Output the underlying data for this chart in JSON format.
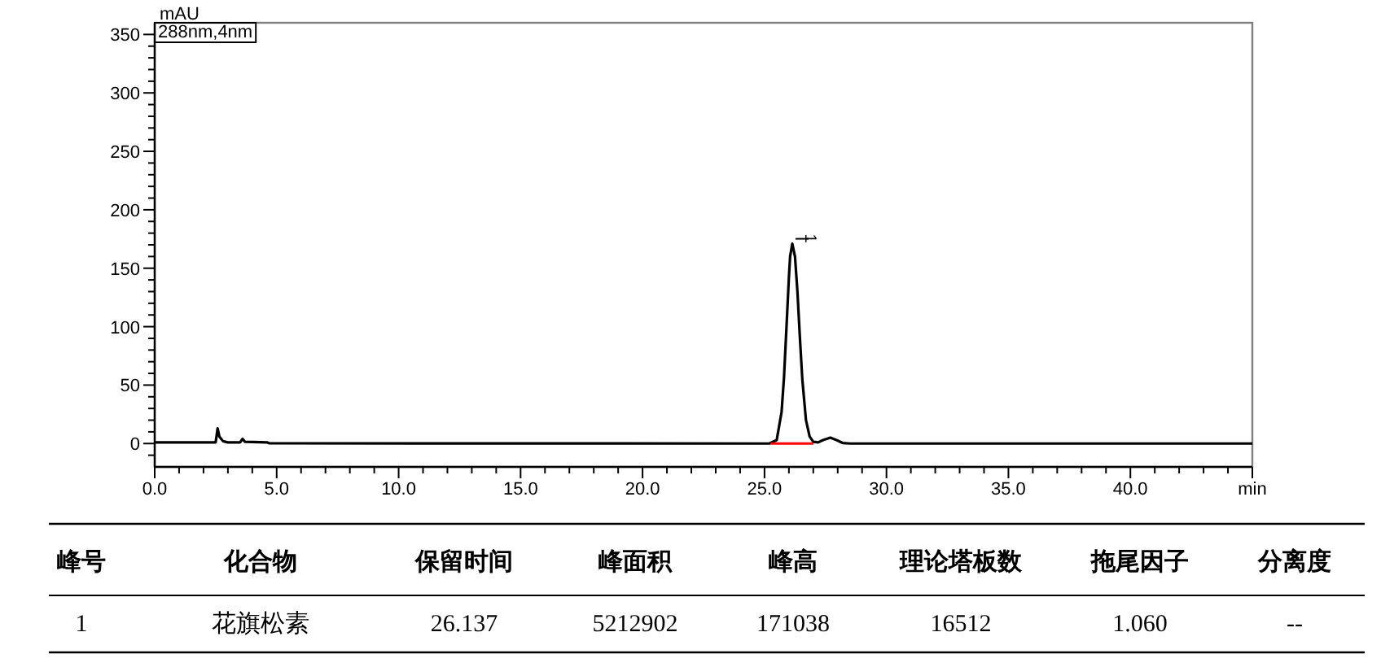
{
  "chart_data": [
    {
      "type": "line",
      "ylabel": "mAU",
      "xlim": [
        0,
        45
      ],
      "ylim": [
        -20,
        360
      ],
      "xticks": [
        {
          "value": 0,
          "label": "0.0"
        },
        {
          "value": 1,
          "label": null
        },
        {
          "value": 2,
          "label": null
        },
        {
          "value": 3,
          "label": null
        },
        {
          "value": 4,
          "label": null
        },
        {
          "value": 5,
          "label": "5.0"
        },
        {
          "value": 6,
          "label": null
        },
        {
          "value": 7,
          "label": null
        },
        {
          "value": 8,
          "label": null
        },
        {
          "value": 9,
          "label": null
        },
        {
          "value": 10,
          "label": "10.0"
        },
        {
          "value": 11,
          "label": null
        },
        {
          "value": 12,
          "label": null
        },
        {
          "value": 13,
          "label": null
        },
        {
          "value": 14,
          "label": null
        },
        {
          "value": 15,
          "label": "15.0"
        },
        {
          "value": 16,
          "label": null
        },
        {
          "value": 17,
          "label": null
        },
        {
          "value": 18,
          "label": null
        },
        {
          "value": 19,
          "label": null
        },
        {
          "value": 20,
          "label": "20.0"
        },
        {
          "value": 21,
          "label": null
        },
        {
          "value": 22,
          "label": null
        },
        {
          "value": 23,
          "label": null
        },
        {
          "value": 24,
          "label": null
        },
        {
          "value": 25,
          "label": "25.0"
        },
        {
          "value": 26,
          "label": null
        },
        {
          "value": 27,
          "label": null
        },
        {
          "value": 28,
          "label": null
        },
        {
          "value": 29,
          "label": null
        },
        {
          "value": 30,
          "label": "30.0"
        },
        {
          "value": 31,
          "label": null
        },
        {
          "value": 32,
          "label": null
        },
        {
          "value": 33,
          "label": null
        },
        {
          "value": 34,
          "label": null
        },
        {
          "value": 35,
          "label": "35.0"
        },
        {
          "value": 36,
          "label": null
        },
        {
          "value": 37,
          "label": null
        },
        {
          "value": 38,
          "label": null
        },
        {
          "value": 39,
          "label": null
        },
        {
          "value": 40,
          "label": "40.0"
        },
        {
          "value": 41,
          "label": null
        },
        {
          "value": 42,
          "label": null
        },
        {
          "value": 43,
          "label": null
        },
        {
          "value": 44,
          "label": null
        },
        {
          "value": 45,
          "label": "min"
        }
      ],
      "yticks": [
        {
          "value": -10,
          "label": null
        },
        0,
        {
          "value": 10,
          "label": null
        },
        {
          "value": 20,
          "label": null
        },
        {
          "value": 30,
          "label": null
        },
        {
          "value": 40,
          "label": null
        },
        50,
        {
          "value": 60,
          "label": null
        },
        {
          "value": 70,
          "label": null
        },
        {
          "value": 80,
          "label": null
        },
        {
          "value": 90,
          "label": null
        },
        100,
        {
          "value": 110,
          "label": null
        },
        {
          "value": 120,
          "label": null
        },
        {
          "value": 130,
          "label": null
        },
        {
          "value": 140,
          "label": null
        },
        150,
        {
          "value": 160,
          "label": null
        },
        {
          "value": 170,
          "label": null
        },
        {
          "value": 180,
          "label": null
        },
        {
          "value": 190,
          "label": null
        },
        200,
        {
          "value": 210,
          "label": null
        },
        {
          "value": 220,
          "label": null
        },
        {
          "value": 230,
          "label": null
        },
        {
          "value": 240,
          "label": null
        },
        250,
        {
          "value": 260,
          "label": null
        },
        {
          "value": 270,
          "label": null
        },
        {
          "value": 280,
          "label": null
        },
        {
          "value": 290,
          "label": null
        },
        300,
        {
          "value": 310,
          "label": null
        },
        {
          "value": 320,
          "label": null
        },
        {
          "value": 330,
          "label": null
        },
        {
          "value": 340,
          "label": null
        },
        350
      ],
      "series": [
        {
          "color": "#000000",
          "x": [
            0,
            2.5,
            2.58,
            2.65,
            2.8,
            3.0,
            3.5,
            3.6,
            3.7,
            4.6,
            4.7,
            25.0,
            25.2,
            25.5,
            25.7,
            25.8,
            25.9,
            26.0,
            26.05,
            26.14,
            26.25,
            26.35,
            26.45,
            26.55,
            26.7,
            26.85,
            27.0,
            27.2,
            27.4,
            27.7,
            27.95,
            28.2,
            28.5,
            45
          ],
          "values": [
            1,
            1,
            13,
            6,
            2,
            1,
            1,
            4,
            1.5,
            1,
            0.2,
            0,
            0,
            3,
            27,
            57,
            99,
            142,
            160,
            171,
            160,
            130,
            91,
            55,
            20,
            6,
            1.5,
            1,
            3,
            5,
            3,
            0.5,
            0,
            0
          ]
        },
        {
          "color": "#ff0000",
          "x": [
            25.25,
            27.0
          ],
          "values": [
            0,
            0
          ]
        }
      ],
      "annotations": [
        "288nm,4nm",
        {
          "text": "1",
          "x": 26.137,
          "y": 171
        }
      ]
    },
    {
      "type": "other",
      "annotations": [
        "峰号",
        "化合物",
        "保留时间",
        "峰面积",
        "峰高",
        "理论塔板数",
        "拖尾因子",
        "分离度",
        "1",
        "花旗松素",
        "26.137",
        "5212902",
        "171038",
        "16512",
        "1.060",
        "--"
      ]
    }
  ]
}
